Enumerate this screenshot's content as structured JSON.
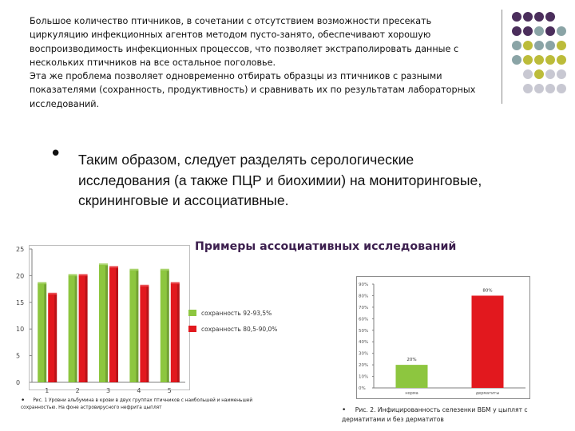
{
  "intro": {
    "line1": "Большое количество птичников, в сочетании с отсутствием возможности пресекать циркуляцию инфекционных агентов методом пусто-занято, обеспечивают хорошую воспроизводимость инфекционных процессов, что позволяет экстраполировать данные с нескольких птичников на все остальное поголовье.",
    "line2": "Эта же проблема позволяет одновременно отбирать образцы из птичников с разными показателями (сохранность, продуктивность) и сравнивать их по результатам лабораторных исследований."
  },
  "main": {
    "bullet": "•",
    "text": "Таким образом, следует разделять серологические исследования (а также ПЦР и биохимии) на мониторинговые, скрининговые и ассоциативные."
  },
  "examples_title": "Примеры ассоциативных исследований",
  "decor": {
    "dot_colors": [
      [
        "#4b2e5c",
        "#4b2e5c",
        "#4b2e5c",
        "#4b2e5c",
        "#4b2e5c"
      ],
      [
        "#4b2e5c",
        "#4b2e5c",
        "#8aa4a6",
        "#4b2e5c",
        "#8aa4a6"
      ],
      [
        "#8aa4a6",
        "#bcbc3a",
        "#8aa4a6",
        "#8aa4a6",
        "#bcbc3a"
      ],
      [
        "#8aa4a6",
        "#bcbc3a",
        "#bcbc3a",
        "#bcbc3a",
        "#bcbc3a"
      ],
      [
        "#bcbc3a",
        "#c8c8d2",
        "#bcbc3a",
        "#c8c8d2",
        "#c8c8d2"
      ],
      [
        "#c8c8d2",
        "#c8c8d2",
        "#c8c8d2",
        "#c8c8d2",
        "#c8c8d2"
      ]
    ],
    "dot_shown": [
      [
        1,
        1,
        1,
        1,
        0
      ],
      [
        1,
        1,
        1,
        1,
        1
      ],
      [
        1,
        1,
        1,
        1,
        1
      ],
      [
        1,
        1,
        1,
        1,
        1
      ],
      [
        0,
        1,
        1,
        1,
        1
      ],
      [
        0,
        1,
        1,
        1,
        1
      ]
    ]
  },
  "chart_data": [
    {
      "type": "bar",
      "categories": [
        "1",
        "2",
        "3",
        "4",
        "5"
      ],
      "series": [
        {
          "name": "сохранность 92-93,5%",
          "values": [
            18.5,
            20,
            22,
            21,
            21
          ],
          "color": "#8dc63f"
        },
        {
          "name": "сохранность 80,5-90,0%",
          "values": [
            16.5,
            20,
            21.5,
            18,
            18.5
          ],
          "color": "#e2181e"
        }
      ],
      "ylim": [
        0,
        25
      ],
      "yticks": [
        "0",
        "5",
        "10",
        "15",
        "20",
        "25"
      ],
      "grid": false,
      "legend": "right",
      "caption": "Рис. 1 Уровни альбумина в крови в двух группах птичников с наибольшей и наименьшей сохранностью. На фоне астровирусного нефрита цыплят"
    },
    {
      "type": "bar",
      "categories": [
        "норма",
        "дерматиты"
      ],
      "values": [
        20,
        80
      ],
      "colors": [
        "#8dc63f",
        "#e2181e"
      ],
      "data_labels": [
        "20%",
        "80%"
      ],
      "ylim": [
        0,
        90
      ],
      "yticks": [
        "0%",
        "10%",
        "20%",
        "30%",
        "40%",
        "50%",
        "60%",
        "70%",
        "80%",
        "90%"
      ],
      "grid": false,
      "legend": "none",
      "caption_num": "Рис. 2.",
      "caption": "Инфицированность селезенки ВБМ у цыплят с дерматитами и без дерматитов"
    }
  ]
}
